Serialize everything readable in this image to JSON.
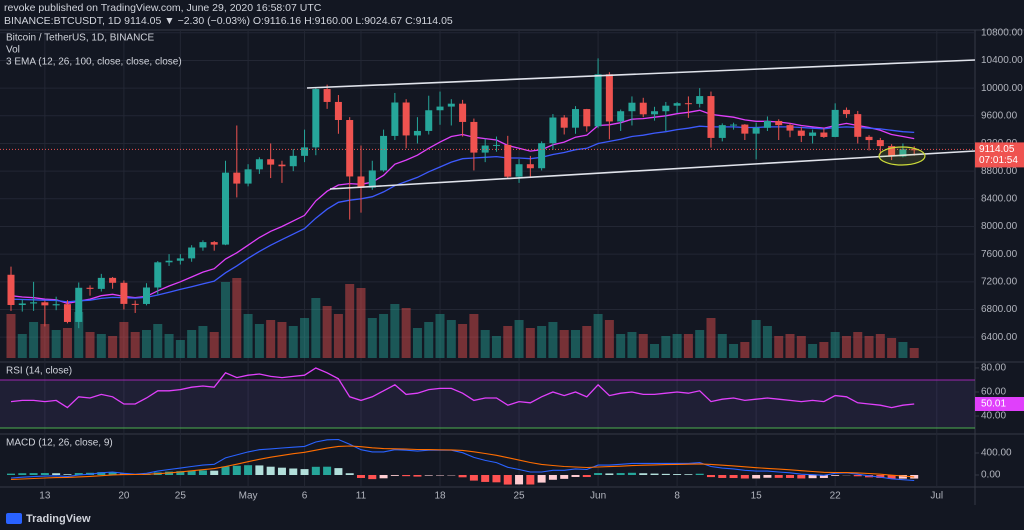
{
  "header": {
    "publisher": "revoke published on TradingView.com, June 29, 2020 16:58:07 UTC",
    "symbol_line": "BINANCE:BTCUSDT, 1D  9114.05 ▼ −2.30 (−0.03%)  O:9116.16  H:9160.00  L:9024.67  C:9114.05"
  },
  "footer": {
    "brand": "TradingView"
  },
  "chart_data": [
    {
      "type": "candlestick",
      "title": "Bitcoin / TetherUS, 1D, BINANCE",
      "volume_label": "Vol",
      "indicator_label": "3 EMA (12, 26, 100, close, close, close)",
      "categories": [
        null,
        null,
        null,
        "13",
        null,
        null,
        null,
        null,
        null,
        null,
        "20",
        null,
        null,
        null,
        null,
        "25",
        null,
        null,
        null,
        null,
        null,
        "May",
        null,
        null,
        null,
        null,
        "6",
        null,
        null,
        null,
        null,
        "11",
        null,
        null,
        null,
        null,
        null,
        null,
        "18",
        null,
        null,
        null,
        null,
        null,
        null,
        "25",
        null,
        null,
        null,
        null,
        null,
        null,
        "Jun",
        null,
        null,
        null,
        null,
        null,
        null,
        "8",
        null,
        null,
        null,
        null,
        null,
        null,
        "15",
        null,
        null,
        null,
        null,
        null,
        null,
        "22",
        null,
        null,
        null,
        null,
        null,
        null,
        null,
        null,
        "Jul",
        null,
        null,
        null
      ],
      "open": [
        7302,
        6865,
        6887,
        6904,
        6860,
        6877,
        6620,
        7114,
        7098,
        7257,
        7186,
        6881,
        6880,
        7118,
        7482,
        7505,
        7539,
        7696,
        7774,
        7738,
        8778,
        8620,
        8826,
        8972,
        8894,
        8871,
        9021,
        9143,
        9986,
        9800,
        9539,
        8723,
        8561,
        8810,
        9309,
        9792,
        9316,
        9381,
        9680,
        9733,
        9775,
        9511,
        9068,
        9170,
        9179,
        8720,
        8900,
        8842,
        9204,
        9575,
        9428,
        9697,
        9448,
        10200,
        9518,
        9666,
        9789,
        9621,
        9666,
        9746,
        9782,
        9772,
        9885,
        9280,
        9465,
        9473,
        9342,
        9426,
        9525,
        9465,
        9386,
        9310,
        9358,
        9294,
        9685,
        9624,
        9296,
        9249,
        9162,
        9012,
        9116.16,
        null,
        null,
        null,
        null,
        null
      ],
      "high": [
        7420,
        6950,
        7200,
        6930,
        6985,
        6935,
        7190,
        7149,
        7315,
        7270,
        7220,
        6930,
        7180,
        7500,
        7600,
        7600,
        7730,
        7800,
        7790,
        8950,
        9460,
        8900,
        9000,
        9200,
        8950,
        9120,
        9400,
        10000,
        10050,
        9900,
        9580,
        9170,
        8950,
        9400,
        9930,
        9840,
        9580,
        9890,
        9950,
        9840,
        9830,
        9560,
        9270,
        9300,
        9310,
        8975,
        9020,
        9230,
        9625,
        9610,
        9740,
        9700,
        10430,
        10230,
        9690,
        9880,
        9860,
        9730,
        9800,
        9800,
        9880,
        10000,
        9950,
        9490,
        9500,
        9480,
        9500,
        9590,
        9550,
        9490,
        9440,
        9400,
        9420,
        9780,
        9720,
        9670,
        9320,
        9280,
        9190,
        9200,
        9160,
        null,
        null,
        null,
        null,
        null
      ],
      "low": [
        6780,
        6770,
        6780,
        6555,
        6790,
        6600,
        6530,
        7000,
        7060,
        7100,
        6800,
        6750,
        6860,
        7020,
        7430,
        7450,
        7490,
        7650,
        7650,
        7730,
        8420,
        8580,
        8760,
        8700,
        8630,
        8800,
        8930,
        9030,
        9700,
        9340,
        8100,
        8200,
        8530,
        8790,
        9250,
        9130,
        9200,
        9330,
        9470,
        9460,
        9300,
        8810,
        8930,
        9080,
        8700,
        8630,
        8700,
        8810,
        9110,
        9330,
        9340,
        9370,
        9420,
        9260,
        9380,
        9460,
        9580,
        9530,
        9380,
        9640,
        9570,
        9720,
        9140,
        9230,
        9400,
        9250,
        8970,
        9380,
        9250,
        9290,
        9220,
        9200,
        9280,
        9290,
        9570,
        9200,
        9100,
        9040,
        8960,
        9000,
        9024.67,
        null,
        null,
        null,
        null,
        null
      ],
      "close": [
        6865,
        6887,
        6904,
        6860,
        6877,
        6620,
        7114,
        7098,
        7257,
        7186,
        6881,
        6880,
        7118,
        7482,
        7505,
        7539,
        7696,
        7774,
        7738,
        8778,
        8620,
        8826,
        8972,
        8894,
        8871,
        9021,
        9143,
        9986,
        9800,
        9539,
        8723,
        8561,
        8810,
        9309,
        9792,
        9316,
        9381,
        9680,
        9733,
        9775,
        9511,
        9068,
        9170,
        9179,
        8720,
        8900,
        8842,
        9204,
        9575,
        9428,
        9697,
        9448,
        10200,
        9518,
        9666,
        9789,
        9621,
        9666,
        9746,
        9782,
        9772,
        9885,
        9280,
        9465,
        9473,
        9342,
        9426,
        9525,
        9465,
        9386,
        9310,
        9358,
        9294,
        9685,
        9624,
        9296,
        9249,
        9162,
        9012,
        9116,
        9114.05,
        null,
        null,
        null,
        null,
        null
      ],
      "volume": [
        110000,
        60000,
        90000,
        85000,
        70000,
        75000,
        115000,
        65000,
        60000,
        55000,
        90000,
        65000,
        70000,
        85000,
        60000,
        45000,
        70000,
        80000,
        65000,
        190000,
        200000,
        110000,
        85000,
        95000,
        90000,
        80000,
        100000,
        150000,
        130000,
        110000,
        185000,
        175000,
        100000,
        110000,
        135000,
        125000,
        75000,
        90000,
        110000,
        95000,
        85000,
        110000,
        70000,
        55000,
        80000,
        95000,
        75000,
        80000,
        90000,
        70000,
        70000,
        80000,
        110000,
        95000,
        60000,
        65000,
        60000,
        35000,
        55000,
        60000,
        60000,
        70000,
        100000,
        60000,
        35000,
        40000,
        95000,
        80000,
        55000,
        60000,
        55000,
        35000,
        40000,
        65000,
        55000,
        65000,
        55000,
        60000,
        50000,
        40000,
        25000,
        null,
        null,
        null,
        null,
        null
      ],
      "ema": [
        {
          "color": "#e040fb",
          "values": [
            7000,
            6980,
            6970,
            6950,
            6940,
            6890,
            6920,
            6950,
            7000,
            7020,
            6990,
            6970,
            6990,
            7070,
            7140,
            7200,
            7270,
            7340,
            7390,
            7530,
            7620,
            7730,
            7840,
            7930,
            8000,
            8080,
            8160,
            8370,
            8510,
            8600,
            8620,
            8610,
            8640,
            8740,
            8900,
            8960,
            9030,
            9130,
            9220,
            9300,
            9330,
            9290,
            9270,
            9250,
            9170,
            9130,
            9090,
            9110,
            9180,
            9220,
            9290,
            9320,
            9460,
            9470,
            9500,
            9550,
            9560,
            9580,
            9600,
            9630,
            9650,
            9680,
            9620,
            9600,
            9580,
            9540,
            9520,
            9520,
            9510,
            9490,
            9460,
            9440,
            9420,
            9460,
            9490,
            9460,
            9430,
            9390,
            9330,
            9300,
            9270,
            null,
            null,
            null,
            null,
            null
          ]
        },
        {
          "color": "#3d5afe",
          "values": [
            6950,
            6945,
            6940,
            6935,
            6930,
            6910,
            6925,
            6935,
            6960,
            6975,
            6970,
            6965,
            6975,
            7010,
            7050,
            7090,
            7130,
            7170,
            7210,
            7330,
            7430,
            7540,
            7640,
            7730,
            7810,
            7890,
            7970,
            8120,
            8250,
            8350,
            8380,
            8400,
            8430,
            8500,
            8590,
            8650,
            8710,
            8790,
            8860,
            8930,
            8980,
            8990,
            9000,
            9010,
            8990,
            8990,
            8980,
            9000,
            9040,
            9070,
            9110,
            9130,
            9200,
            9230,
            9260,
            9300,
            9320,
            9350,
            9370,
            9400,
            9420,
            9450,
            9440,
            9440,
            9440,
            9430,
            9430,
            9440,
            9440,
            9440,
            9430,
            9420,
            9410,
            9430,
            9440,
            9430,
            9420,
            9410,
            9390,
            9370,
            9360,
            null,
            null,
            null,
            null,
            null
          ]
        }
      ],
      "up_color": "#26a69a",
      "down_color": "#ef5350",
      "ylim": [
        6070,
        10840
      ],
      "yticks": [
        {
          "value": 6400,
          "label": "6400.00"
        },
        {
          "value": 6800,
          "label": "6800.00"
        },
        {
          "value": 7200,
          "label": "7200.00"
        },
        {
          "value": 7600,
          "label": "7600.00"
        },
        {
          "value": 8000,
          "label": "8000.00"
        },
        {
          "value": 8400,
          "label": "8400.00"
        },
        {
          "value": 8800,
          "label": "8800.00"
        },
        {
          "value": 9200,
          "label": "9200.00"
        },
        {
          "value": 9600,
          "label": "9600.00"
        },
        {
          "value": 10000,
          "label": "10000.00"
        },
        {
          "value": 10400,
          "label": "10400.00"
        },
        {
          "value": 10800,
          "label": "10800.00"
        }
      ],
      "last_price": 9114.05,
      "countdown": "07:01:54",
      "grid": true
    },
    {
      "type": "line",
      "title": "RSI (14, close)",
      "color": "#e040fb",
      "values": [
        52,
        53,
        53,
        52,
        53,
        47,
        56,
        55,
        58,
        56,
        50,
        50,
        55,
        61,
        61,
        62,
        64,
        65,
        64,
        76,
        72,
        74,
        75,
        73,
        72,
        73,
        74,
        80,
        76,
        71,
        56,
        53,
        56,
        61,
        66,
        58,
        59,
        62,
        63,
        63,
        59,
        53,
        55,
        55,
        49,
        52,
        51,
        56,
        60,
        57,
        60,
        56,
        66,
        57,
        59,
        60,
        58,
        58,
        59,
        60,
        59,
        61,
        52,
        54,
        55,
        53,
        54,
        55,
        54,
        53,
        52,
        53,
        52,
        57,
        56,
        51,
        50,
        49,
        47,
        49,
        50.01,
        null,
        null,
        null,
        null,
        null
      ],
      "ylim": [
        26.7,
        83.3
      ],
      "yticks": [
        {
          "value": 80,
          "label": "80.00"
        },
        {
          "value": 60,
          "label": "60.00"
        },
        {
          "value": 40,
          "label": "40.00"
        }
      ],
      "bands": [
        30,
        70
      ],
      "band_colors": [
        "#4caf50",
        "#9c27b0"
      ]
    },
    {
      "type": "macd",
      "title": "MACD (12, 26, close, 9)",
      "macd": {
        "color": "#2962ff",
        "values": [
          -55,
          -40,
          -30,
          -20,
          -15,
          -30,
          0,
          15,
          40,
          55,
          30,
          15,
          30,
          70,
          100,
          125,
          155,
          180,
          195,
          310,
          365,
          420,
          460,
          475,
          490,
          505,
          520,
          600,
          640,
          645,
          560,
          460,
          420,
          420,
          460,
          450,
          435,
          450,
          450,
          450,
          405,
          320,
          265,
          225,
          140,
          100,
          55,
          55,
          85,
          85,
          110,
          100,
          180,
          180,
          195,
          210,
          210,
          210,
          210,
          210,
          210,
          225,
          155,
          125,
          110,
          85,
          70,
          70,
          55,
          40,
          15,
          5,
          -5,
          30,
          40,
          15,
          -15,
          -40,
          -70,
          -85,
          -100,
          null,
          null,
          null,
          null,
          null
        ]
      },
      "signal": {
        "color": "#ff6d00",
        "values": [
          -80,
          -72,
          -64,
          -55,
          -47,
          -44,
          -35,
          -25,
          -12,
          1,
          7,
          9,
          13,
          24,
          39,
          56,
          76,
          97,
          116,
          155,
          197,
          242,
          286,
          324,
          357,
          387,
          413,
          451,
          489,
          520,
          528,
          514,
          495,
          480,
          476,
          471,
          464,
          461,
          459,
          457,
          447,
          422,
          391,
          358,
          314,
          271,
          228,
          193,
          172,
          155,
          146,
          137,
          145,
          152,
          160,
          170,
          178,
          184,
          189,
          193,
          196,
          202,
          193,
          179,
          165,
          149,
          133,
          120,
          107,
          94,
          78,
          63,
          49,
          45,
          44,
          38,
          27,
          14,
          -3,
          -19,
          -35,
          null,
          null,
          null,
          null,
          null
        ]
      },
      "histogram": [
        25,
        32,
        34,
        35,
        32,
        14,
        35,
        40,
        52,
        54,
        23,
        6,
        17,
        46,
        61,
        69,
        79,
        83,
        79,
        155,
        168,
        178,
        174,
        151,
        133,
        118,
        107,
        149,
        151,
        125,
        32,
        -54,
        -75,
        -60,
        -16,
        -21,
        -29,
        -11,
        -9,
        -7,
        -42,
        -102,
        -126,
        -133,
        -174,
        -171,
        -173,
        -138,
        -87,
        -70,
        -36,
        -37,
        35,
        28,
        35,
        40,
        32,
        26,
        21,
        17,
        14,
        23,
        -38,
        -54,
        -55,
        -64,
        -63,
        -50,
        -52,
        -54,
        -63,
        -58,
        -54,
        -15,
        -4,
        -23,
        -42,
        -54,
        -67,
        -66,
        -65,
        null,
        null,
        null,
        null,
        null
      ],
      "histogram_colors": [
        "#26a69a",
        "#b2dfdb",
        "#ff5252",
        "#ffcdd2"
      ],
      "ylim": [
        -200,
        709
      ],
      "yticks": [
        {
          "value": 400,
          "label": "400.00"
        },
        {
          "value": 0,
          "label": "0.00"
        }
      ]
    }
  ]
}
